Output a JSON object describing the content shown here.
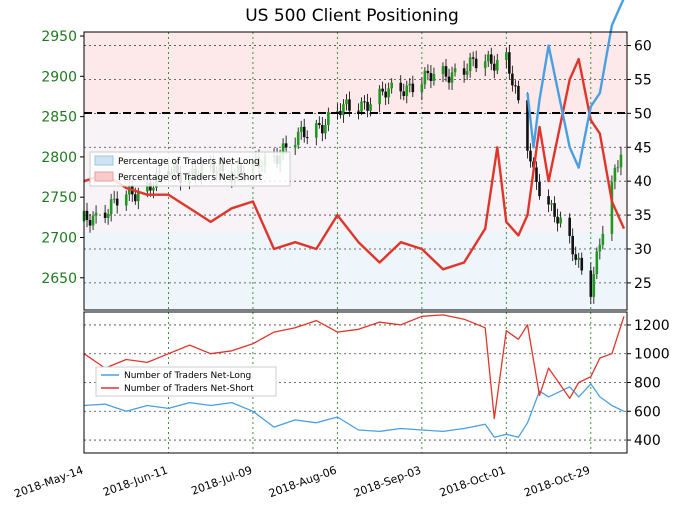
{
  "chart_data": [
    {
      "type": "line",
      "title": "US 500 Client Positioning",
      "x": [
        "2018-May-14",
        "2018-Jun-11",
        "2018-Jul-09",
        "2018-Aug-06",
        "2018-Sep-03",
        "2018-Oct-01",
        "2018-Oct-29"
      ],
      "y_left_ticks": [
        "2650",
        "2700",
        "2750",
        "2800",
        "2850",
        "2900",
        "2950"
      ],
      "y_right_ticks": [
        "25",
        "30",
        "35",
        "40",
        "45",
        "50",
        "55",
        "60"
      ],
      "ylim_left": [
        2610,
        2955
      ],
      "ylim_right": [
        21,
        62
      ],
      "reference_line": 50,
      "legend": [
        {
          "label": "Percentage of Traders Net-Long",
          "color": "#a9cce9"
        },
        {
          "label": "Percentage of Traders Net-Short",
          "color": "#f4b9b9"
        }
      ],
      "legend_position": "upper-left",
      "grid": true,
      "price_ohlc_approx": [
        {
          "date": "2018-May-14",
          "close": 2720
        },
        {
          "date": "2018-Jun-11",
          "close": 2780
        },
        {
          "date": "2018-Jul-09",
          "close": 2785
        },
        {
          "date": "2018-Aug-06",
          "close": 2855
        },
        {
          "date": "2018-Sep-03",
          "close": 2895
        },
        {
          "date": "2018-Oct-01",
          "close": 2925
        },
        {
          "date": "2018-Oct-10",
          "close": 2780
        },
        {
          "date": "2018-Oct-29",
          "close": 2640
        },
        {
          "date": "2018-Nov-08",
          "close": 2810
        }
      ],
      "series": [
        {
          "name": "Percentage of Traders Net-Short",
          "color": "#e0352b",
          "points": [
            [
              "2018-May-14",
              40
            ],
            [
              "2018-May-21",
              41
            ],
            [
              "2018-May-28",
              39
            ],
            [
              "2018-Jun-04",
              38
            ],
            [
              "2018-Jun-11",
              38
            ],
            [
              "2018-Jun-18",
              36
            ],
            [
              "2018-Jun-25",
              34
            ],
            [
              "2018-Jul-02",
              36
            ],
            [
              "2018-Jul-09",
              37
            ],
            [
              "2018-Jul-16",
              30
            ],
            [
              "2018-Jul-23",
              31
            ],
            [
              "2018-Jul-30",
              30
            ],
            [
              "2018-Aug-06",
              35
            ],
            [
              "2018-Aug-13",
              31
            ],
            [
              "2018-Aug-20",
              28
            ],
            [
              "2018-Aug-27",
              31
            ],
            [
              "2018-Sep-03",
              30
            ],
            [
              "2018-Sep-10",
              27
            ],
            [
              "2018-Sep-17",
              28
            ],
            [
              "2018-Sep-24",
              33
            ],
            [
              "2018-Sep-28",
              45
            ],
            [
              "2018-Oct-01",
              34
            ],
            [
              "2018-Oct-05",
              32
            ],
            [
              "2018-Oct-08",
              35
            ],
            [
              "2018-Oct-12",
              48
            ],
            [
              "2018-Oct-15",
              40
            ],
            [
              "2018-Oct-22",
              55
            ],
            [
              "2018-Oct-25",
              58
            ],
            [
              "2018-Oct-29",
              49
            ],
            [
              "2018-Nov-01",
              47
            ],
            [
              "2018-Nov-05",
              37
            ],
            [
              "2018-Nov-09",
              33
            ]
          ]
        },
        {
          "name": "Percentage of Traders Net-Long",
          "color": "#4a9fe0",
          "points": [
            [
              "2018-Oct-08",
              53
            ],
            [
              "2018-Oct-10",
              45
            ],
            [
              "2018-Oct-12",
              52
            ],
            [
              "2018-Oct-15",
              60
            ],
            [
              "2018-Oct-22",
              45
            ],
            [
              "2018-Oct-25",
              42
            ],
            [
              "2018-Oct-29",
              51
            ],
            [
              "2018-Nov-01",
              53
            ],
            [
              "2018-Nov-05",
              63
            ],
            [
              "2018-Nov-09",
              67
            ]
          ]
        }
      ]
    },
    {
      "type": "line",
      "title": "",
      "x": [
        "2018-May-14",
        "2018-Jun-11",
        "2018-Jul-09",
        "2018-Aug-06",
        "2018-Sep-03",
        "2018-Oct-01",
        "2018-Oct-29"
      ],
      "y_ticks": [
        "400",
        "600",
        "800",
        "1000",
        "1200"
      ],
      "ylim": [
        310,
        1290
      ],
      "legend_position": "center-left",
      "grid": true,
      "series": [
        {
          "name": "Number of Traders Net-Long",
          "color": "#4a9fe0",
          "points": [
            [
              "2018-May-14",
              640
            ],
            [
              "2018-May-21",
              650
            ],
            [
              "2018-May-28",
              600
            ],
            [
              "2018-Jun-04",
              640
            ],
            [
              "2018-Jun-11",
              620
            ],
            [
              "2018-Jun-18",
              660
            ],
            [
              "2018-Jun-25",
              640
            ],
            [
              "2018-Jul-02",
              660
            ],
            [
              "2018-Jul-09",
              600
            ],
            [
              "2018-Jul-16",
              490
            ],
            [
              "2018-Jul-23",
              540
            ],
            [
              "2018-Jul-30",
              520
            ],
            [
              "2018-Aug-06",
              560
            ],
            [
              "2018-Aug-13",
              470
            ],
            [
              "2018-Aug-20",
              460
            ],
            [
              "2018-Aug-27",
              480
            ],
            [
              "2018-Sep-03",
              470
            ],
            [
              "2018-Sep-10",
              460
            ],
            [
              "2018-Sep-17",
              480
            ],
            [
              "2018-Sep-24",
              510
            ],
            [
              "2018-Sep-27",
              420
            ],
            [
              "2018-Oct-01",
              440
            ],
            [
              "2018-Oct-05",
              420
            ],
            [
              "2018-Oct-08",
              520
            ],
            [
              "2018-Oct-12",
              740
            ],
            [
              "2018-Oct-15",
              700
            ],
            [
              "2018-Oct-22",
              770
            ],
            [
              "2018-Oct-25",
              700
            ],
            [
              "2018-Oct-29",
              790
            ],
            [
              "2018-Nov-01",
              700
            ],
            [
              "2018-Nov-05",
              640
            ],
            [
              "2018-Nov-09",
              600
            ]
          ]
        },
        {
          "name": "Number of Traders Net-Short",
          "color": "#e0352b",
          "points": [
            [
              "2018-May-14",
              1000
            ],
            [
              "2018-May-21",
              900
            ],
            [
              "2018-May-28",
              960
            ],
            [
              "2018-Jun-04",
              940
            ],
            [
              "2018-Jun-11",
              1000
            ],
            [
              "2018-Jun-18",
              1060
            ],
            [
              "2018-Jun-25",
              1000
            ],
            [
              "2018-Jul-02",
              1020
            ],
            [
              "2018-Jul-09",
              1070
            ],
            [
              "2018-Jul-16",
              1150
            ],
            [
              "2018-Jul-23",
              1180
            ],
            [
              "2018-Jul-30",
              1230
            ],
            [
              "2018-Aug-06",
              1150
            ],
            [
              "2018-Aug-13",
              1170
            ],
            [
              "2018-Aug-20",
              1220
            ],
            [
              "2018-Aug-27",
              1200
            ],
            [
              "2018-Sep-03",
              1260
            ],
            [
              "2018-Sep-10",
              1270
            ],
            [
              "2018-Sep-17",
              1240
            ],
            [
              "2018-Sep-24",
              1180
            ],
            [
              "2018-Sep-27",
              550
            ],
            [
              "2018-Oct-01",
              1160
            ],
            [
              "2018-Oct-05",
              1100
            ],
            [
              "2018-Oct-08",
              1200
            ],
            [
              "2018-Oct-12",
              710
            ],
            [
              "2018-Oct-15",
              900
            ],
            [
              "2018-Oct-22",
              690
            ],
            [
              "2018-Oct-25",
              800
            ],
            [
              "2018-Oct-29",
              840
            ],
            [
              "2018-Nov-01",
              970
            ],
            [
              "2018-Nov-05",
              1000
            ],
            [
              "2018-Nov-09",
              1260
            ]
          ]
        }
      ]
    }
  ]
}
